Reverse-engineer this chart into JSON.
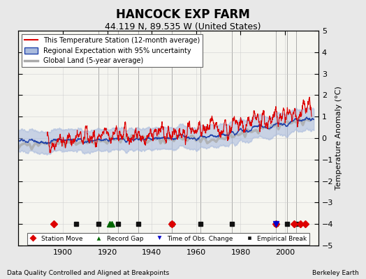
{
  "title": "HANCOCK EXP FARM",
  "subtitle": "44.119 N, 89.535 W (United States)",
  "xlabel_note": "Data Quality Controlled and Aligned at Breakpoints",
  "credit": "Berkeley Earth",
  "ylim": [
    -5,
    5
  ],
  "xlim": [
    1880,
    2015
  ],
  "yticks": [
    -5,
    -4,
    -3,
    -2,
    -1,
    0,
    1,
    2,
    3,
    4,
    5
  ],
  "xticks": [
    1900,
    1920,
    1940,
    1960,
    1980,
    2000
  ],
  "ylabel": "Temperature Anomaly (°C)",
  "bg_color": "#e8e8e8",
  "plot_bg_color": "#f5f5f0",
  "legend_items": [
    {
      "label": "This Temperature Station (12-month average)",
      "color": "#dd0000",
      "lw": 1.0
    },
    {
      "label": "Regional Expectation with 95% uncertainty",
      "color": "#6688cc",
      "lw": 2.0
    },
    {
      "label": "Global Land (5-year average)",
      "color": "#aaaaaa",
      "lw": 2.5
    }
  ],
  "markers": [
    {
      "type": "station_move",
      "years": [
        1896,
        1949,
        1996,
        2004,
        2007,
        2009
      ],
      "color": "#dd0000",
      "marker": "D"
    },
    {
      "type": "record_gap",
      "years": [
        1921,
        1922
      ],
      "color": "#006600",
      "marker": "^"
    },
    {
      "type": "obs_change",
      "years": [
        1996
      ],
      "color": "#0000cc",
      "marker": "v"
    },
    {
      "type": "empirical_break",
      "years": [
        1906,
        1916,
        1925,
        1934,
        1949,
        1962,
        1976,
        1996,
        2001,
        2005
      ],
      "color": "#111111",
      "marker": "s"
    }
  ],
  "vertical_lines": [
    1916,
    1925,
    1934,
    1949,
    1962,
    1976,
    1996,
    2001,
    2005
  ],
  "seed": 42
}
